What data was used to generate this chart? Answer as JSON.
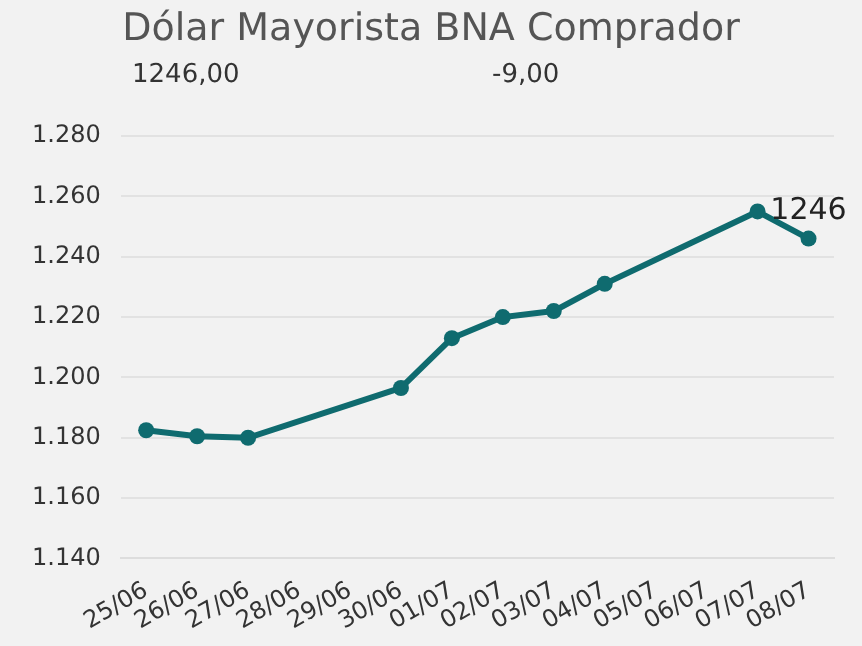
{
  "chart_data": {
    "type": "line",
    "title": "Dólar Mayorista BNA Comprador",
    "annotations": [
      "1246,00",
      "-9,00"
    ],
    "categories": [
      "25/06",
      "26/06",
      "27/06",
      "28/06",
      "29/06",
      "30/06",
      "01/07",
      "02/07",
      "03/07",
      "04/07",
      "05/07",
      "06/07",
      "07/07",
      "08/07"
    ],
    "series": [
      {
        "color": "#0f6b6f",
        "values": [
          1182.5,
          1180.5,
          1180,
          null,
          null,
          1196.5,
          1213,
          1220,
          1222,
          1231,
          null,
          null,
          1255,
          1246
        ],
        "value_labels": [
          null,
          null,
          null,
          null,
          null,
          null,
          null,
          null,
          null,
          null,
          null,
          null,
          null,
          "1246"
        ]
      }
    ],
    "ylim": [
      1140,
      1280
    ],
    "yticks": [
      {
        "value": 1140,
        "label": "1.140"
      },
      {
        "value": 1160,
        "label": "1.160"
      },
      {
        "value": 1180,
        "label": "1.180"
      },
      {
        "value": 1200,
        "label": "1.200"
      },
      {
        "value": 1220,
        "label": "1.220"
      },
      {
        "value": 1240,
        "label": "1.240"
      },
      {
        "value": 1260,
        "label": "1.260"
      },
      {
        "value": 1280,
        "label": "1.280"
      }
    ],
    "grid": "y",
    "legend": false,
    "marker": "circle",
    "line_style": "solid"
  }
}
